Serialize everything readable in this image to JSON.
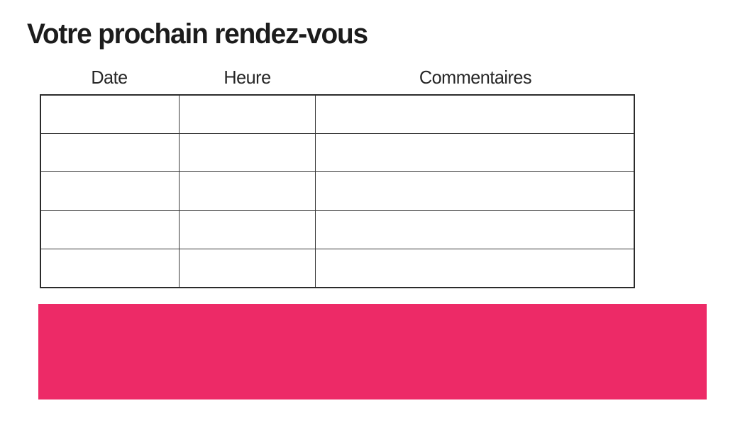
{
  "page": {
    "title": "Votre prochain rendez-vous",
    "background_color": "#ffffff"
  },
  "table": {
    "headers": [
      "Date",
      "Heure",
      "Commentaires"
    ],
    "rows": [
      [
        "",
        "",
        ""
      ],
      [
        "",
        "",
        ""
      ],
      [
        "",
        "",
        ""
      ],
      [
        "",
        "",
        ""
      ],
      [
        "",
        "",
        ""
      ]
    ],
    "border_color": "#2b2b2b"
  },
  "banner": {
    "text": "",
    "color": "#ED2A67"
  }
}
